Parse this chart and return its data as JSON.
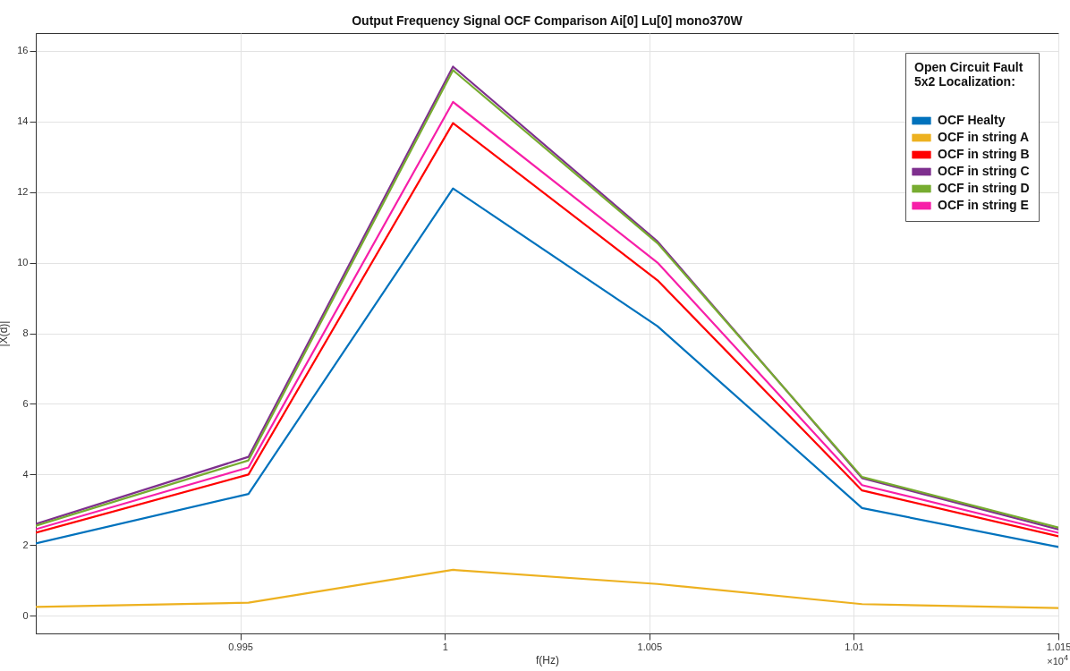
{
  "chart_data": {
    "type": "line",
    "title": "Output Frequency Signal OCF Comparison  Ai[0] Lu[0] mono370W",
    "xlabel": "f(Hz)",
    "ylabel": "|X(d)|",
    "legend_title": "Open Circuit Fault\n5x2 Localization:",
    "x": [
      0.99,
      0.9952,
      1.0002,
      1.0052,
      1.0102,
      1.015
    ],
    "series": [
      {
        "name": "OCF Healty",
        "color": "#0072bd",
        "values": [
          2.05,
          3.45,
          12.1,
          8.2,
          3.05,
          1.95
        ]
      },
      {
        "name": "OCF in string A",
        "color": "#edb120",
        "values": [
          0.25,
          0.37,
          1.3,
          0.9,
          0.33,
          0.22
        ]
      },
      {
        "name": "OCF in string B",
        "color": "#ff0000",
        "values": [
          2.35,
          4.0,
          13.95,
          9.5,
          3.55,
          2.25
        ]
      },
      {
        "name": "OCF in string C",
        "color": "#7e2f8e",
        "values": [
          2.6,
          4.5,
          15.55,
          10.6,
          3.9,
          2.45
        ]
      },
      {
        "name": "OCF in string D",
        "color": "#77ac30",
        "values": [
          2.55,
          4.4,
          15.45,
          10.55,
          3.93,
          2.5
        ]
      },
      {
        "name": "OCF in string E",
        "color": "#f71fa8",
        "values": [
          2.45,
          4.2,
          14.55,
          10.0,
          3.7,
          2.35
        ]
      }
    ],
    "xlim": [
      0.99,
      1.015
    ],
    "xticks": [
      0.995,
      1,
      1.005,
      1.01,
      1.015
    ],
    "ylim": [
      -0.5,
      16.5
    ],
    "yticks": [
      0,
      2,
      4,
      6,
      8,
      10,
      12,
      14,
      16
    ],
    "grid": true,
    "legend": "top right",
    "line_style": "solid",
    "annotations": [
      "×10$^{4}$"
    ]
  }
}
